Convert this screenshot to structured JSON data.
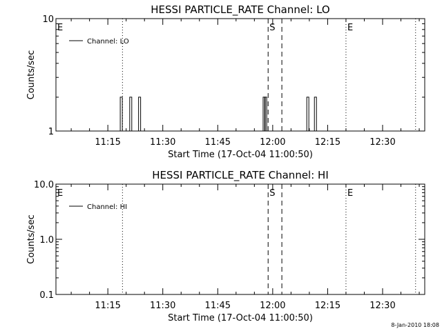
{
  "footer_text": "8-Jan-2010 18:08",
  "chart_data": [
    {
      "type": "line",
      "title": "HESSI PARTICLE_RATE Channel: LO",
      "xlabel": "Start Time (17-Oct-04 11:00:50)",
      "ylabel": "Counts/sec",
      "y_scale": "log",
      "ylim": [
        1,
        10
      ],
      "y_ticks": [
        {
          "value": 1,
          "label": "1"
        },
        {
          "value": 10,
          "label": "10"
        }
      ],
      "xlim": [
        "11:00:50",
        "12:41:30"
      ],
      "x_ticks": [
        {
          "time": "11:15",
          "label": "11:15"
        },
        {
          "time": "11:30",
          "label": "11:30"
        },
        {
          "time": "11:45",
          "label": "11:45"
        },
        {
          "time": "12:00",
          "label": "12:00"
        },
        {
          "time": "12:15",
          "label": "12:15"
        },
        {
          "time": "12:30",
          "label": "12:30"
        }
      ],
      "legend": {
        "placement": "top-left",
        "entries": [
          "Channel: LO"
        ]
      },
      "series": [
        {
          "name": "Channel: LO",
          "spikes": [
            {
              "time": "11:18:40",
              "value": 2.0
            },
            {
              "time": "11:21:15",
              "value": 2.0
            },
            {
              "time": "11:23:40",
              "value": 2.0
            },
            {
              "time": "11:57:40",
              "value": 2.0
            },
            {
              "time": "11:58:05",
              "value": 2.0
            },
            {
              "time": "12:09:35",
              "value": 2.0
            },
            {
              "time": "12:11:40",
              "value": 2.0
            }
          ]
        }
      ],
      "markers": [
        {
          "time": "11:00:50",
          "label": "E",
          "style": "dotted"
        },
        {
          "time": "11:19:00",
          "label": "",
          "style": "dotted"
        },
        {
          "time": "11:58:45",
          "label": "S",
          "style": "dashed"
        },
        {
          "time": "12:02:30",
          "label": "",
          "style": "dashed"
        },
        {
          "time": "12:20:00",
          "label": "E",
          "style": "dotted"
        },
        {
          "time": "12:39:00",
          "label": "",
          "style": "dotted"
        }
      ]
    },
    {
      "type": "line",
      "title": "HESSI PARTICLE_RATE Channel: HI",
      "xlabel": "Start Time (17-Oct-04 11:00:50)",
      "ylabel": "Counts/sec",
      "y_scale": "log",
      "ylim": [
        0.1,
        10
      ],
      "y_ticks": [
        {
          "value": 0.1,
          "label": "0.1"
        },
        {
          "value": 1,
          "label": "1.0"
        },
        {
          "value": 10,
          "label": "10.0"
        }
      ],
      "xlim": [
        "11:00:50",
        "12:41:30"
      ],
      "x_ticks": [
        {
          "time": "11:15",
          "label": "11:15"
        },
        {
          "time": "11:30",
          "label": "11:30"
        },
        {
          "time": "11:45",
          "label": "11:45"
        },
        {
          "time": "12:00",
          "label": "12:00"
        },
        {
          "time": "12:15",
          "label": "12:15"
        },
        {
          "time": "12:30",
          "label": "12:30"
        }
      ],
      "legend": {
        "placement": "top-left",
        "entries": [
          "Channel: HI"
        ]
      },
      "series": [
        {
          "name": "Channel: HI",
          "spikes": []
        }
      ],
      "markers": [
        {
          "time": "11:00:50",
          "label": "E",
          "style": "dotted"
        },
        {
          "time": "11:19:00",
          "label": "",
          "style": "dotted"
        },
        {
          "time": "11:58:45",
          "label": "S",
          "style": "dashed"
        },
        {
          "time": "12:02:30",
          "label": "",
          "style": "dashed"
        },
        {
          "time": "12:20:00",
          "label": "E",
          "style": "dotted"
        },
        {
          "time": "12:39:00",
          "label": "",
          "style": "dotted"
        }
      ]
    }
  ]
}
